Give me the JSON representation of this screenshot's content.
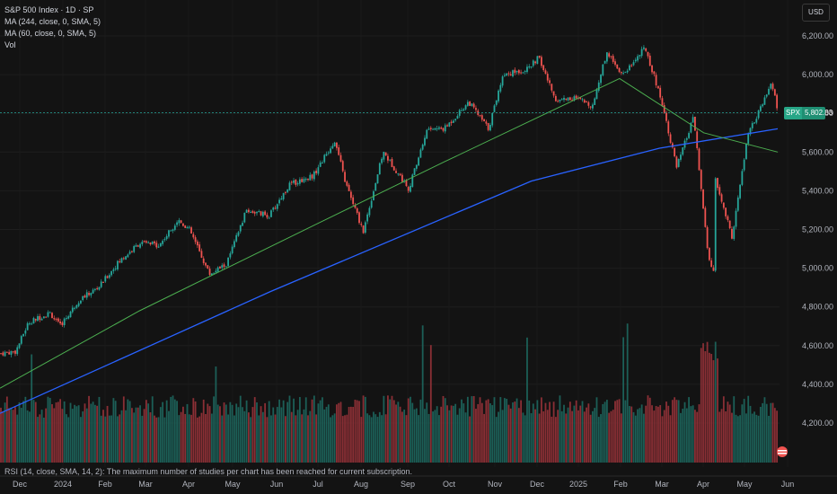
{
  "legend": {
    "title": "S&P 500 Index · 1D · SP",
    "ma1": "MA (244, close, 0, SMA, 5)",
    "ma2": "MA (60, close, 0, SMA, 5)",
    "vol": "Vol"
  },
  "currency": "USD",
  "price_tag": {
    "symbol": "SPX",
    "value": "5,802.83"
  },
  "rsi_note": "RSI (14, close, SMA, 14, 2): The maximum number of studies per chart has been reached for current subscription.",
  "colors": {
    "up": "#26a69a",
    "down": "#ef5350",
    "ma244": "#2962ff",
    "ma60": "#4caf50",
    "background": "#131313"
  },
  "chart_data": {
    "type": "candlestick",
    "y_ticks": [
      "6,200.00",
      "6,000.00",
      "5,800.00",
      "5,600.00",
      "5,400.00",
      "5,200.00",
      "5,000.00",
      "4,800.00",
      "4,600.00",
      "4,400.00",
      "4,200.00"
    ],
    "y_tick_values": [
      6200,
      6000,
      5800,
      5600,
      5400,
      5200,
      5000,
      4800,
      4600,
      4400,
      4200
    ],
    "x_ticks": [
      "Dec",
      "2024",
      "Feb",
      "Mar",
      "Apr",
      "May",
      "Jun",
      "Jul",
      "Aug",
      "Sep",
      "Oct",
      "Nov",
      "Dec",
      "2025",
      "Feb",
      "Mar",
      "Apr",
      "May",
      "Jun"
    ],
    "ylim": [
      4100,
      6270
    ],
    "last_price": 5802.83,
    "close_points": [
      [
        "2023-11-24",
        4560
      ],
      [
        "2023-12-05",
        4570
      ],
      [
        "2023-12-14",
        4720
      ],
      [
        "2023-12-29",
        4770
      ],
      [
        "2024-01-05",
        4700
      ],
      [
        "2024-01-19",
        4840
      ],
      [
        "2024-02-01",
        4900
      ],
      [
        "2024-02-15",
        5030
      ],
      [
        "2024-03-01",
        5130
      ],
      [
        "2024-03-15",
        5120
      ],
      [
        "2024-03-28",
        5250
      ],
      [
        "2024-04-05",
        5200
      ],
      [
        "2024-04-19",
        4970
      ],
      [
        "2024-05-01",
        5020
      ],
      [
        "2024-05-15",
        5300
      ],
      [
        "2024-05-31",
        5270
      ],
      [
        "2024-06-14",
        5430
      ],
      [
        "2024-07-01",
        5480
      ],
      [
        "2024-07-16",
        5660
      ],
      [
        "2024-07-24",
        5430
      ],
      [
        "2024-08-05",
        5190
      ],
      [
        "2024-08-19",
        5600
      ],
      [
        "2024-09-06",
        5410
      ],
      [
        "2024-09-19",
        5720
      ],
      [
        "2024-10-01",
        5720
      ],
      [
        "2024-10-18",
        5860
      ],
      [
        "2024-11-01",
        5720
      ],
      [
        "2024-11-11",
        6000
      ],
      [
        "2024-11-29",
        6030
      ],
      [
        "2024-12-06",
        6090
      ],
      [
        "2024-12-18",
        5870
      ],
      [
        "2024-12-31",
        5880
      ],
      [
        "2025-01-13",
        5840
      ],
      [
        "2025-01-23",
        6120
      ],
      [
        "2025-02-03",
        6000
      ],
      [
        "2025-02-19",
        6140
      ],
      [
        "2025-03-03",
        5850
      ],
      [
        "2025-03-13",
        5520
      ],
      [
        "2025-03-25",
        5780
      ],
      [
        "2025-04-04",
        5070
      ],
      [
        "2025-04-08",
        4980
      ],
      [
        "2025-04-09",
        5460
      ],
      [
        "2025-04-21",
        5160
      ],
      [
        "2025-05-02",
        5690
      ],
      [
        "2025-05-12",
        5840
      ],
      [
        "2025-05-19",
        5960
      ],
      [
        "2025-05-23",
        5802.83
      ]
    ],
    "ma244_points": [
      [
        "2023-11-24",
        4250
      ],
      [
        "2024-06-01",
        4880
      ],
      [
        "2024-12-01",
        5450
      ],
      [
        "2025-03-01",
        5620
      ],
      [
        "2025-05-23",
        5720
      ]
    ],
    "ma60_points": [
      [
        "2023-11-24",
        4380
      ],
      [
        "2024-03-01",
        4780
      ],
      [
        "2024-07-01",
        5220
      ],
      [
        "2024-10-01",
        5550
      ],
      [
        "2025-02-01",
        5980
      ],
      [
        "2025-04-01",
        5700
      ],
      [
        "2025-05-23",
        5600
      ]
    ]
  }
}
